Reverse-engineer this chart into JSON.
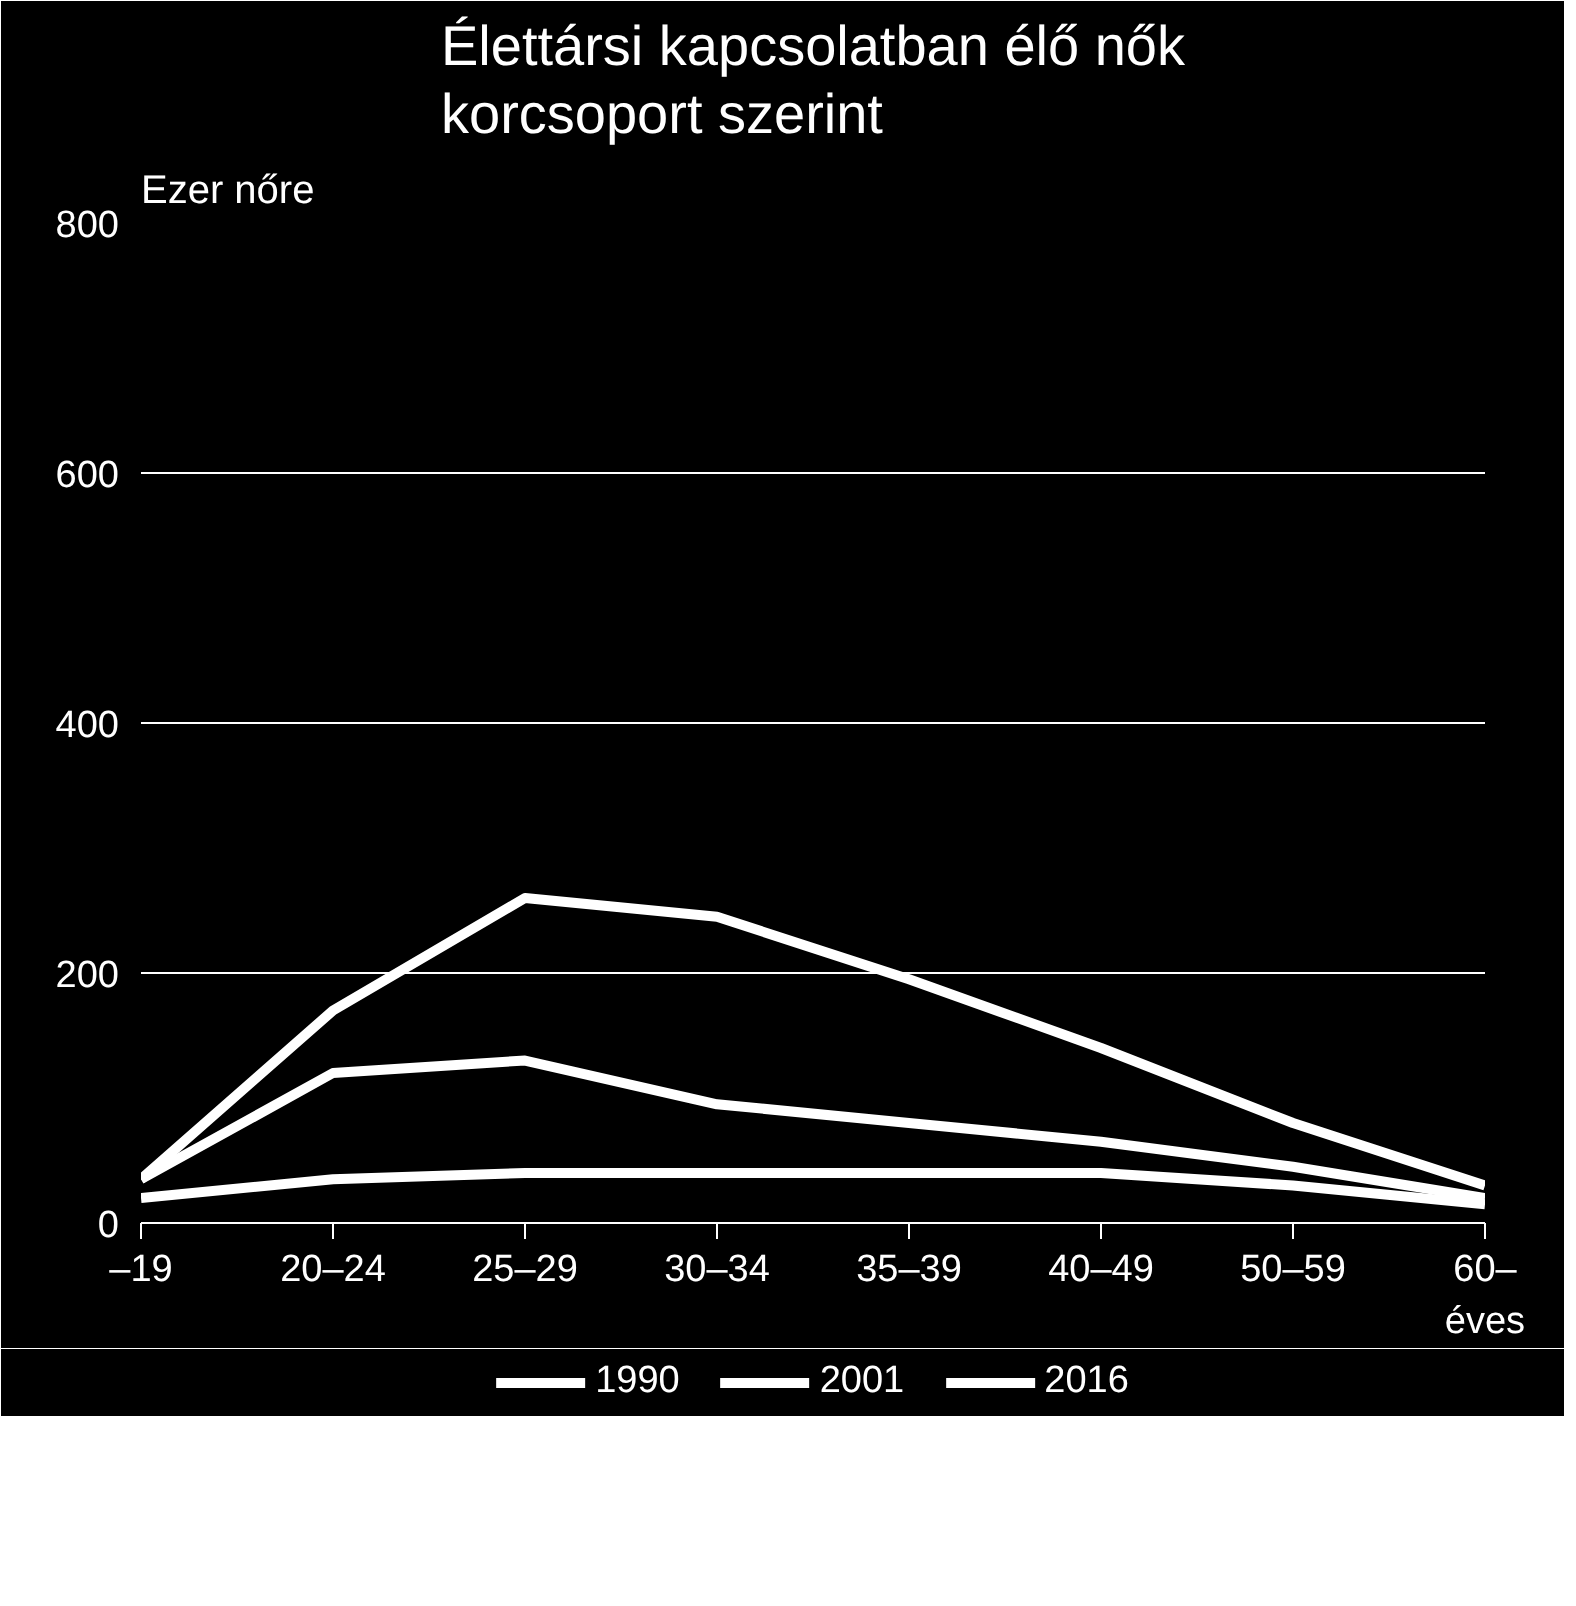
{
  "chart_data": {
    "type": "line",
    "title": "Élettársi kapcsolatban élő nők\nkorcsoport szerint",
    "ylabel": "Ezer nőre",
    "xlabel": "éves",
    "categories": [
      "–19",
      "20–24",
      "25–29",
      "30–34",
      "35–39",
      "40–49",
      "50–59",
      "60–"
    ],
    "series": [
      {
        "name": "1990",
        "color": "#ffffff",
        "values": [
          20,
          35,
          40,
          40,
          40,
          40,
          30,
          15
        ]
      },
      {
        "name": "2001",
        "color": "#ffffff",
        "values": [
          35,
          120,
          130,
          95,
          80,
          65,
          45,
          20
        ]
      },
      {
        "name": "2016",
        "color": "#ffffff",
        "values": [
          35,
          170,
          260,
          245,
          195,
          140,
          80,
          30
        ]
      }
    ],
    "ylim": [
      0,
      800
    ],
    "yticks": [
      0,
      200,
      400,
      600,
      800
    ],
    "grid": "y",
    "legend": "bottom",
    "marker": "none",
    "line_style": "solid"
  }
}
